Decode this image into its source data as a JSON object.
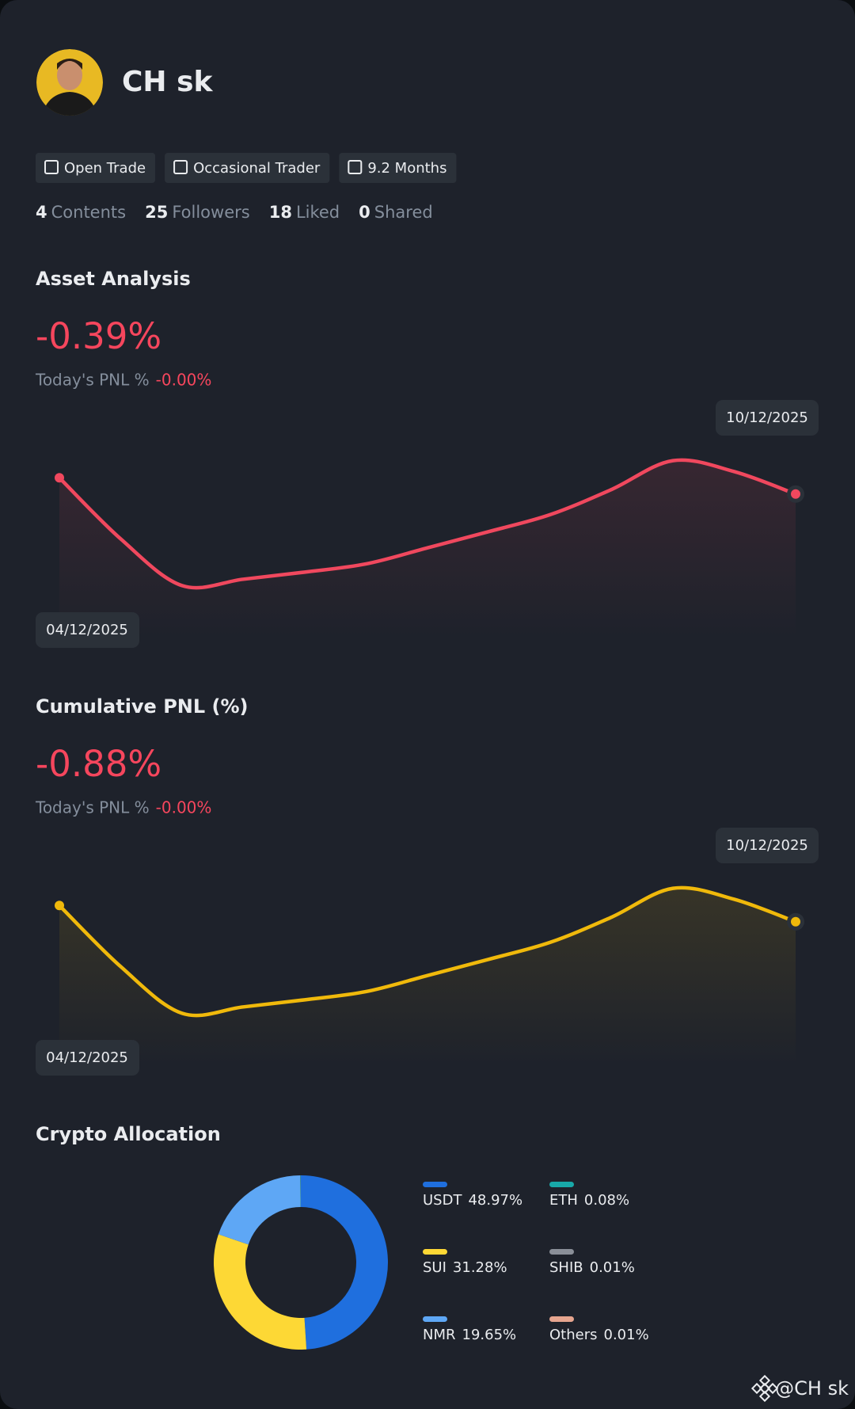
{
  "profile": {
    "name": "CH sk",
    "tags": [
      "Open Trade",
      "Occasional Trader",
      "9.2 Months"
    ],
    "stats": [
      {
        "value": "4",
        "label": "Contents"
      },
      {
        "value": "25",
        "label": "Followers"
      },
      {
        "value": "18",
        "label": "Liked"
      },
      {
        "value": "0",
        "label": "Shared"
      }
    ]
  },
  "sections": [
    {
      "title": "Asset Analysis",
      "value": "-0.39%",
      "today_label": "Today's PNL %",
      "today_value": "-0.00%",
      "line": {
        "start_date": "04/12/2025",
        "end_date": "10/12/2025",
        "color": "#f0485e",
        "ylim": [
          0,
          100
        ],
        "values": [
          69.8,
          43.1,
          22.7,
          25.5,
          28.6,
          32.2,
          39.2,
          46.3,
          53.7,
          64.7,
          77.3,
          72.5,
          62.7
        ]
      }
    },
    {
      "title": "Cumulative PNL (%)",
      "value": "-0.88%",
      "today_label": "Today's PNL %",
      "today_value": "-0.00%",
      "line": {
        "start_date": "04/12/2025",
        "end_date": "10/12/2025",
        "color": "#f0b90b",
        "ylim": [
          0,
          100
        ],
        "values": [
          69.8,
          43.1,
          22.7,
          25.5,
          28.6,
          32.2,
          39.2,
          46.3,
          53.7,
          64.7,
          77.3,
          72.5,
          62.7
        ]
      }
    }
  ],
  "allocation": {
    "title": "Crypto Allocation",
    "items": [
      {
        "name": "USDT",
        "value": 48.97,
        "value_label": "48.97%",
        "color": "#1f6fde"
      },
      {
        "name": "SUI",
        "value": 31.28,
        "value_label": "31.28%",
        "color": "#fdd835"
      },
      {
        "name": "NMR",
        "value": 19.65,
        "value_label": "19.65%",
        "color": "#5ea7f5"
      },
      {
        "name": "ETH",
        "value": 0.08,
        "value_label": "0.08%",
        "color": "#18a9a9"
      },
      {
        "name": "SHIB",
        "value": 0.01,
        "value_label": "0.01%",
        "color": "#8a8f98"
      },
      {
        "name": "Others",
        "value": 0.01,
        "value_label": "0.01%",
        "color": "#e6a58f"
      }
    ]
  },
  "watermark": "@CH sk"
}
